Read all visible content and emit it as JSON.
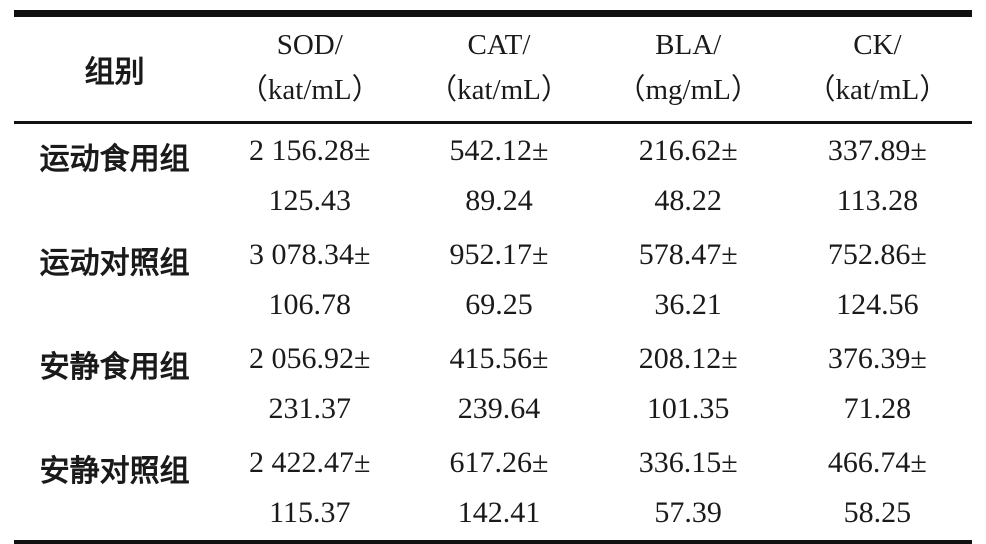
{
  "colors": {
    "background": "#ffffff",
    "text": "#1a1a1a",
    "border": "#111111"
  },
  "table": {
    "columns": [
      {
        "name": "组别",
        "unit": ""
      },
      {
        "name": "SOD/",
        "unit": "（kat/mL）"
      },
      {
        "name": "CAT/",
        "unit": "（kat/mL）"
      },
      {
        "name": "BLA/",
        "unit": "（mg/mL）"
      },
      {
        "name": "CK/",
        "unit": "（kat/mL）"
      }
    ],
    "rows": [
      {
        "group": "运动食用组",
        "sod_mean": "2 156.28±",
        "sod_sd": "125.43",
        "cat_mean": "542.12±",
        "cat_sd": "89.24",
        "bla_mean": "216.62±",
        "bla_sd": "48.22",
        "ck_mean": "337.89±",
        "ck_sd": "113.28"
      },
      {
        "group": "运动对照组",
        "sod_mean": "3 078.34±",
        "sod_sd": "106.78",
        "cat_mean": "952.17±",
        "cat_sd": "69.25",
        "bla_mean": "578.47±",
        "bla_sd": "36.21",
        "ck_mean": "752.86±",
        "ck_sd": "124.56"
      },
      {
        "group": "安静食用组",
        "sod_mean": "2 056.92±",
        "sod_sd": "231.37",
        "cat_mean": "415.56±",
        "cat_sd": "239.64",
        "bla_mean": "208.12±",
        "bla_sd": "101.35",
        "ck_mean": "376.39±",
        "ck_sd": "71.28"
      },
      {
        "group": "安静对照组",
        "sod_mean": "2 422.47±",
        "sod_sd": "115.37",
        "cat_mean": "617.26±",
        "cat_sd": "142.41",
        "bla_mean": "336.15±",
        "bla_sd": "57.39",
        "ck_mean": "466.74±",
        "ck_sd": "58.25"
      }
    ]
  }
}
